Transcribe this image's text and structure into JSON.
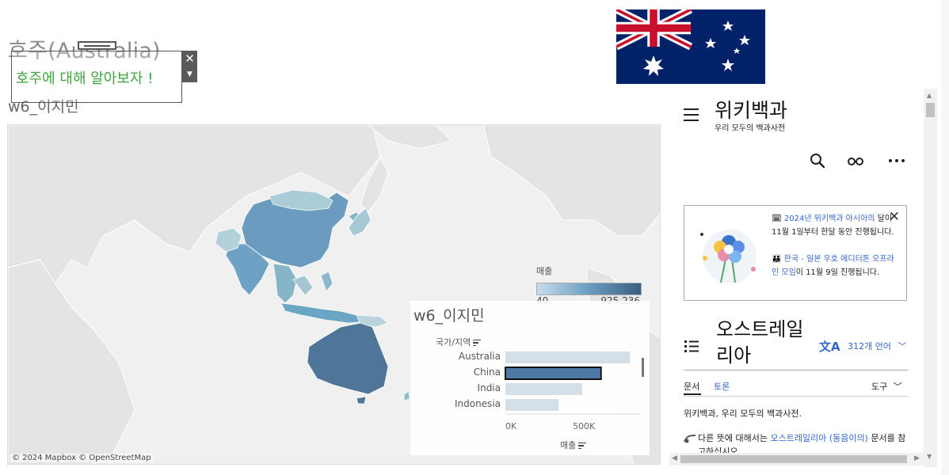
{
  "dashboard": {
    "title": "호주(Australia)",
    "subtitle": "w6_이지민",
    "textbox": {
      "text": "호주에 대해 알아보자 !",
      "close_label": "✕",
      "dropdown_label": "▼"
    }
  },
  "map": {
    "attribution": "© 2024 Mapbox © OpenStreetMap",
    "legend": {
      "title": "매출",
      "min": "40",
      "max": "925,236"
    }
  },
  "chart": {
    "title": "w6_이지민",
    "dimension_label": "국가/지역",
    "measure_label": "매출",
    "selected": "China"
  },
  "chart_data": {
    "type": "bar",
    "categories": [
      "Australia",
      "China",
      "India",
      "Indonesia"
    ],
    "values": [
      925236,
      710000,
      570000,
      395000
    ],
    "xlabel": "매출",
    "ylabel": "국가/지역",
    "xlim": [
      0,
      1000000
    ],
    "x_ticks": [
      "0K",
      "500K"
    ],
    "grid": false
  },
  "wiki": {
    "logo": "위키백과",
    "tagline": "우리 모두의 백과사전",
    "notice": {
      "close": "✕",
      "line1_link": "2024년 위키백과 아시아의",
      "line1_rest": " 달이 11월 1일부터 한달 동안 진행됩니다.",
      "line2_link": "한국 - 일본 우호 에디터톤 오프라인 모임",
      "line2_rest": "이 11월 9일 진행됩니다."
    },
    "article_title": "오스트레일리아",
    "languages": "312개 언어",
    "tabs": {
      "article": "문서",
      "talk": "토론",
      "tools": "도구"
    },
    "from": "위키백과, 우리 모두의 백과사전.",
    "hatnote_prefix": "다른 뜻에 대해서는 ",
    "hatnote_link": "오스트레일리아 (동음이의)",
    "hatnote_suffix": " 문서를 참고하십시오."
  },
  "colors": {
    "accent_green": "#3ea63a",
    "link_blue": "#3366cc",
    "flag_blue": "#012169",
    "flag_red": "#c8102e",
    "map_dark": "#4a6f91",
    "bar_selected": "#4e79a7",
    "bar_default": "#d5dfe8"
  }
}
